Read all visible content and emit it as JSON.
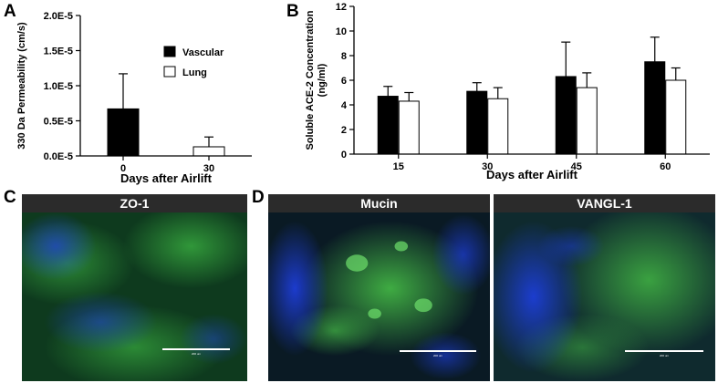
{
  "panels": {
    "a": "A",
    "b": "B",
    "c": "C",
    "d": "D"
  },
  "legend": [
    "Vascular",
    "Lung"
  ],
  "colors": {
    "vascular": "#000000",
    "lung": "#ffffff",
    "header": "#2b2b2b",
    "tissue_green": "#2fae3a",
    "nuclei_blue": "#1a3ad0"
  },
  "chart_data": [
    {
      "type": "bar",
      "ylabel": "330 Da Permeability (cm/s)",
      "xlabel": "Days after Airlift",
      "ylim": [
        0,
        2e-05
      ],
      "yticks": [
        "0.0E-5",
        "0.5E-5",
        "1.0E-5",
        "1.5E-5",
        "2.0E-5"
      ],
      "ytick_values": [
        0,
        5e-06,
        1e-05,
        1.5e-05,
        2e-05
      ],
      "categories": [
        "0",
        "30"
      ],
      "series": [
        {
          "name": "Vascular",
          "values": [
            6.7e-06,
            null
          ],
          "errors": [
            5e-06,
            null
          ]
        },
        {
          "name": "Lung",
          "values": [
            null,
            1.3e-06
          ],
          "errors": [
            null,
            1.4e-06
          ]
        }
      ],
      "legend_position": "top-right"
    },
    {
      "type": "bar",
      "ylabel": "Soluble ACE-2 Concentration (ng/ml)",
      "ylabel_lines": [
        "Soluble ACE-2 Concentration",
        "(ng/ml)"
      ],
      "xlabel": "Days after Airlift",
      "ylim": [
        0,
        12
      ],
      "yticks": [
        "0",
        "2",
        "4",
        "6",
        "8",
        "10",
        "12"
      ],
      "ytick_values": [
        0,
        2,
        4,
        6,
        8,
        10,
        12
      ],
      "categories": [
        "15",
        "30",
        "45",
        "60"
      ],
      "series": [
        {
          "name": "Vascular",
          "values": [
            4.7,
            5.1,
            6.3,
            7.5
          ],
          "errors": [
            0.8,
            0.7,
            2.8,
            2.0
          ]
        },
        {
          "name": "Lung",
          "values": [
            4.3,
            4.5,
            5.4,
            6.0
          ],
          "errors": [
            0.7,
            0.9,
            1.2,
            1.0
          ]
        }
      ]
    }
  ],
  "micrographs": [
    {
      "title": "ZO-1",
      "scale": "200 um"
    },
    {
      "title": "Mucin",
      "scale": "200 um"
    },
    {
      "title": "VANGL-1",
      "scale": "200 um"
    }
  ]
}
